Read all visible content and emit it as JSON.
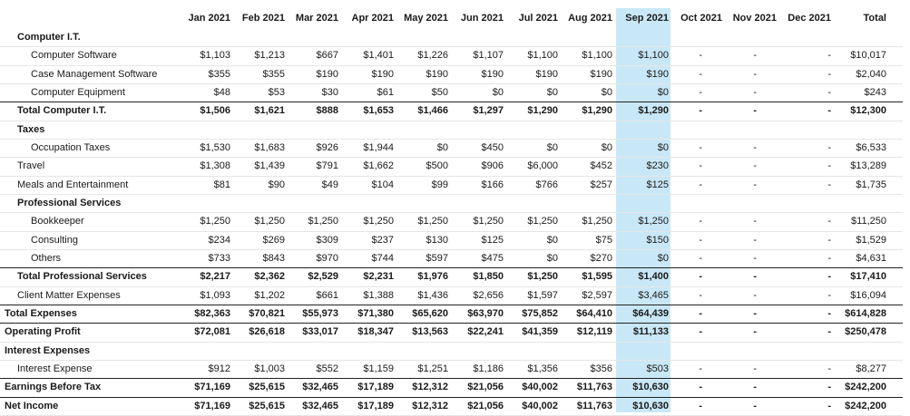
{
  "columns": [
    "Jan 2021",
    "Feb 2021",
    "Mar 2021",
    "Apr 2021",
    "May 2021",
    "Jun 2021",
    "Jul 2021",
    "Aug 2021",
    "Sep 2021",
    "Oct 2021",
    "Nov 2021",
    "Dec 2021",
    "Total"
  ],
  "rows": [
    {
      "label": "Computer I.T.",
      "level": 1,
      "bold": true,
      "values": [
        "",
        "",
        "",
        "",
        "",
        "",
        "",
        "",
        "",
        "",
        "",
        "",
        ""
      ]
    },
    {
      "label": "Computer Software",
      "level": 2,
      "bold": false,
      "values": [
        "$1,103",
        "$1,213",
        "$667",
        "$1,401",
        "$1,226",
        "$1,107",
        "$1,100",
        "$1,100",
        "$1,100",
        "-",
        "-",
        "-",
        "$10,017"
      ]
    },
    {
      "label": "Case Management Software",
      "level": 2,
      "bold": false,
      "values": [
        "$355",
        "$355",
        "$190",
        "$190",
        "$190",
        "$190",
        "$190",
        "$190",
        "$190",
        "-",
        "-",
        "-",
        "$2,040"
      ]
    },
    {
      "label": "Computer Equipment",
      "level": 2,
      "bold": false,
      "values": [
        "$48",
        "$53",
        "$30",
        "$61",
        "$50",
        "$0",
        "$0",
        "$0",
        "$0",
        "-",
        "-",
        "-",
        "$243"
      ]
    },
    {
      "label": "Total Computer I.T.",
      "level": 1,
      "bold": true,
      "values": [
        "$1,506",
        "$1,621",
        "$888",
        "$1,653",
        "$1,466",
        "$1,297",
        "$1,290",
        "$1,290",
        "$1,290",
        "-",
        "-",
        "-",
        "$12,300"
      ]
    },
    {
      "label": "Taxes",
      "level": 1,
      "bold": true,
      "values": [
        "",
        "",
        "",
        "",
        "",
        "",
        "",
        "",
        "",
        "",
        "",
        "",
        ""
      ]
    },
    {
      "label": "Occupation Taxes",
      "level": 2,
      "bold": false,
      "values": [
        "$1,530",
        "$1,683",
        "$926",
        "$1,944",
        "$0",
        "$450",
        "$0",
        "$0",
        "$0",
        "-",
        "-",
        "-",
        "$6,533"
      ]
    },
    {
      "label": "Travel",
      "level": 1,
      "bold": false,
      "values": [
        "$1,308",
        "$1,439",
        "$791",
        "$1,662",
        "$500",
        "$906",
        "$6,000",
        "$452",
        "$230",
        "-",
        "-",
        "-",
        "$13,289"
      ]
    },
    {
      "label": "Meals and Entertainment",
      "level": 1,
      "bold": false,
      "values": [
        "$81",
        "$90",
        "$49",
        "$104",
        "$99",
        "$166",
        "$766",
        "$257",
        "$125",
        "-",
        "-",
        "-",
        "$1,735"
      ]
    },
    {
      "label": "Professional Services",
      "level": 1,
      "bold": true,
      "values": [
        "",
        "",
        "",
        "",
        "",
        "",
        "",
        "",
        "",
        "",
        "",
        "",
        ""
      ]
    },
    {
      "label": "Bookkeeper",
      "level": 2,
      "bold": false,
      "values": [
        "$1,250",
        "$1,250",
        "$1,250",
        "$1,250",
        "$1,250",
        "$1,250",
        "$1,250",
        "$1,250",
        "$1,250",
        "-",
        "-",
        "-",
        "$11,250"
      ]
    },
    {
      "label": "Consulting",
      "level": 2,
      "bold": false,
      "values": [
        "$234",
        "$269",
        "$309",
        "$237",
        "$130",
        "$125",
        "$0",
        "$75",
        "$150",
        "-",
        "-",
        "-",
        "$1,529"
      ]
    },
    {
      "label": "Others",
      "level": 2,
      "bold": false,
      "values": [
        "$733",
        "$843",
        "$970",
        "$744",
        "$597",
        "$475",
        "$0",
        "$270",
        "$0",
        "-",
        "-",
        "-",
        "$4,631"
      ]
    },
    {
      "label": "Total Professional Services",
      "level": 1,
      "bold": true,
      "values": [
        "$2,217",
        "$2,362",
        "$2,529",
        "$2,231",
        "$1,976",
        "$1,850",
        "$1,250",
        "$1,595",
        "$1,400",
        "-",
        "-",
        "-",
        "$17,410"
      ]
    },
    {
      "label": "Client Matter Expenses",
      "level": 1,
      "bold": false,
      "values": [
        "$1,093",
        "$1,202",
        "$661",
        "$1,388",
        "$1,436",
        "$2,656",
        "$1,597",
        "$2,597",
        "$3,465",
        "-",
        "-",
        "-",
        "$16,094"
      ]
    },
    {
      "label": "Total Expenses",
      "level": 0,
      "bold": true,
      "values": [
        "$82,363",
        "$70,821",
        "$55,973",
        "$71,380",
        "$65,620",
        "$63,970",
        "$75,852",
        "$64,410",
        "$64,439",
        "-",
        "-",
        "-",
        "$614,828"
      ]
    },
    {
      "label": "Operating Profit",
      "level": 0,
      "bold": true,
      "values": [
        "$72,081",
        "$26,618",
        "$33,017",
        "$18,347",
        "$13,563",
        "$22,241",
        "$41,359",
        "$12,119",
        "$11,133",
        "-",
        "-",
        "-",
        "$250,478"
      ]
    },
    {
      "label": "Interest Expenses",
      "level": 0,
      "bold": true,
      "values": [
        "",
        "",
        "",
        "",
        "",
        "",
        "",
        "",
        "",
        "",
        "",
        "",
        ""
      ]
    },
    {
      "label": "Interest Expense",
      "level": 1,
      "bold": false,
      "values": [
        "$912",
        "$1,003",
        "$552",
        "$1,159",
        "$1,251",
        "$1,186",
        "$1,356",
        "$356",
        "$503",
        "-",
        "-",
        "-",
        "$8,277"
      ]
    },
    {
      "label": "Earnings Before Tax",
      "level": 0,
      "bold": true,
      "values": [
        "$71,169",
        "$25,615",
        "$32,465",
        "$17,189",
        "$12,312",
        "$21,056",
        "$40,002",
        "$11,763",
        "$10,630",
        "-",
        "-",
        "-",
        "$242,200"
      ]
    },
    {
      "label": "Net Income",
      "level": 0,
      "bold": true,
      "values": [
        "$71,169",
        "$25,615",
        "$32,465",
        "$17,189",
        "$12,312",
        "$21,056",
        "$40,002",
        "$11,763",
        "$10,630",
        "-",
        "-",
        "-",
        "$242,200"
      ]
    }
  ],
  "highlight_column": "Sep 2021",
  "highlight_color": "#c9e8f7"
}
